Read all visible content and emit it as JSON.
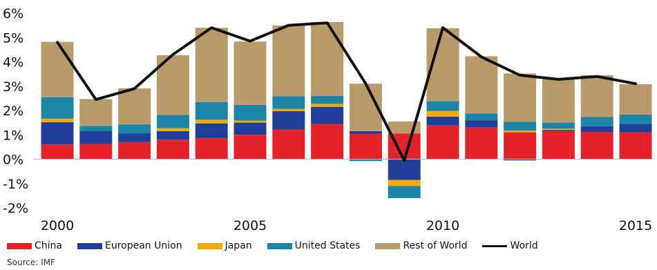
{
  "chart_data": {
    "type": "bar",
    "subtype": "stacked-bar-with-line",
    "x": [
      2000,
      2001,
      2002,
      2003,
      2004,
      2005,
      2006,
      2007,
      2008,
      2009,
      2010,
      2011,
      2012,
      2013,
      2014,
      2015
    ],
    "xtick_labels": [
      "2000",
      "2005",
      "2010",
      "2015"
    ],
    "xtick_values": [
      2000,
      2005,
      2010,
      2015
    ],
    "ytick_labels": [
      "-2%",
      "-1%",
      "0%",
      "1%",
      "2%",
      "3%",
      "4%",
      "5%",
      "6%"
    ],
    "ylim": [
      -2,
      6
    ],
    "ylabel": "",
    "xlabel": "",
    "title": "",
    "series": [
      {
        "name": "China",
        "color": "#e3222a",
        "values": [
          0.6,
          0.62,
          0.7,
          0.8,
          0.87,
          1.0,
          1.22,
          1.45,
          1.05,
          1.05,
          1.38,
          1.3,
          1.1,
          1.15,
          1.12,
          1.1
        ]
      },
      {
        "name": "European Union",
        "color": "#1f3f9a",
        "values": [
          0.92,
          0.53,
          0.35,
          0.35,
          0.6,
          0.5,
          0.75,
          0.7,
          0.1,
          -0.85,
          0.37,
          0.3,
          -0.05,
          0.05,
          0.23,
          0.35
        ]
      },
      {
        "name": "Japan",
        "color": "#f2a900",
        "values": [
          0.15,
          0.0,
          0.0,
          0.12,
          0.15,
          0.08,
          0.1,
          0.12,
          0.0,
          -0.25,
          0.23,
          0.0,
          0.07,
          0.05,
          0.0,
          0.0
        ]
      },
      {
        "name": "United States",
        "color": "#1d86a8",
        "values": [
          0.87,
          0.22,
          0.38,
          0.55,
          0.73,
          0.65,
          0.52,
          0.33,
          -0.08,
          -0.5,
          0.4,
          0.28,
          0.37,
          0.25,
          0.38,
          0.38
        ]
      },
      {
        "name": "Rest of World",
        "color": "#b99b6b",
        "values": [
          2.28,
          1.1,
          1.48,
          2.45,
          3.05,
          2.6,
          2.9,
          3.03,
          1.95,
          0.5,
          3.0,
          2.35,
          1.98,
          1.8,
          1.72,
          1.25
        ]
      }
    ],
    "line": {
      "name": "World",
      "color": "#111111",
      "values": [
        4.8,
        2.45,
        2.9,
        4.3,
        5.4,
        4.85,
        5.5,
        5.6,
        3.1,
        -0.05,
        5.4,
        4.2,
        3.45,
        3.28,
        3.4,
        3.1
      ]
    },
    "legend_position": "bottom",
    "grid": false
  },
  "source": "Source: IMF"
}
